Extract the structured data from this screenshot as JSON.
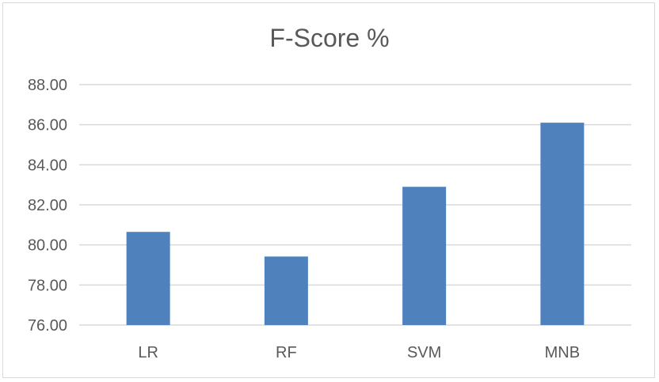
{
  "chart_data": {
    "type": "bar",
    "title": "F-Score %",
    "xlabel": "",
    "ylabel": "",
    "categories": [
      "LR",
      "RF",
      "SVM",
      "MNB"
    ],
    "values": [
      80.65,
      79.42,
      82.9,
      86.1
    ],
    "ylim": [
      76,
      88
    ],
    "yticks": [
      "76.00",
      "78.00",
      "80.00",
      "82.00",
      "84.00",
      "86.00",
      "88.00"
    ],
    "ytick_values": [
      76,
      78,
      80,
      82,
      84,
      86,
      88
    ],
    "grid": true,
    "legend": "none",
    "bar_color": "#4f81bd",
    "grid_color": "#d9d9d9"
  }
}
